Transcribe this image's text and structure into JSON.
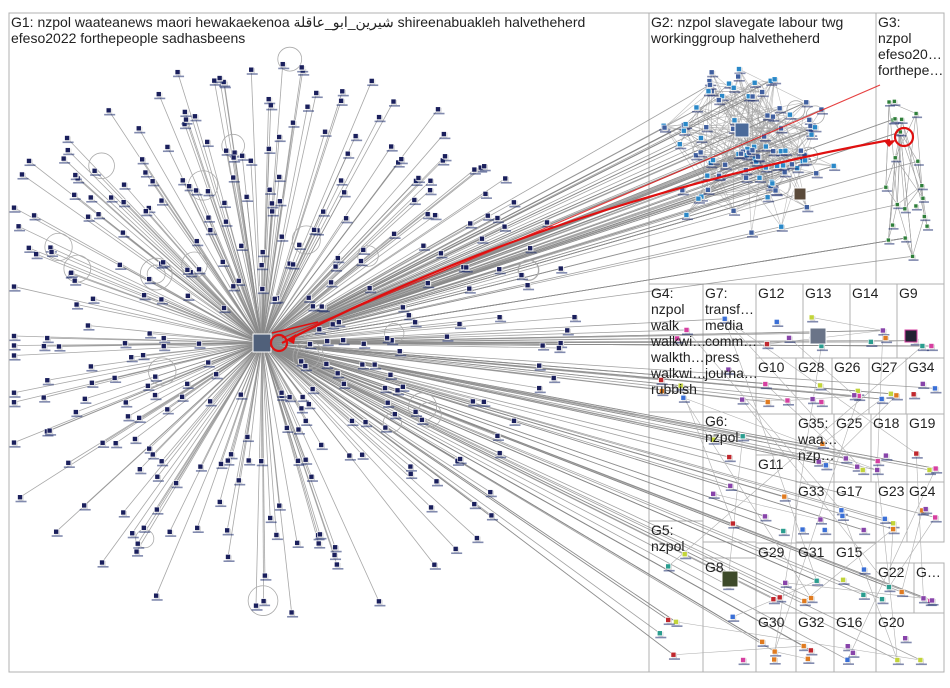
{
  "colors": {
    "edge": "#8a8a8a",
    "highlight": "#e01010",
    "box_border": "#b0b0b0",
    "label": "#222222",
    "node_g1": "#1a1f5c",
    "node_g2": "#2a88c8",
    "node_g3": "#2f7f3a",
    "node_g5": "#c0282e",
    "node_g8": "#c2d43a",
    "node_misc": "#8844aa"
  },
  "groups": [
    {
      "id": "G1",
      "lines": [
        "G1: nzpol waateanews maori hewakaekenoa شيرين_ابو_عاقلة shireenabuakleh halvetheherd",
        "efeso2022 forthepeople sadhasbeens"
      ]
    },
    {
      "id": "G2",
      "lines": [
        "G2: nzpol slavegate labour twg",
        "workinggroup halvetheherd"
      ]
    },
    {
      "id": "G3",
      "lines": [
        "G3:",
        "nzpol",
        "efeso20…",
        "forthepe…"
      ]
    },
    {
      "id": "G4",
      "lines": [
        "G4:",
        "nzpol",
        "walk",
        "walkwi…",
        "walkth…",
        "walkwi…",
        "rubbish"
      ]
    },
    {
      "id": "G7",
      "lines": [
        "G7:",
        "transf…",
        "media",
        "comm…",
        "press",
        "journa…"
      ]
    },
    {
      "id": "G12",
      "lines": [
        "G12"
      ]
    },
    {
      "id": "G13",
      "lines": [
        "G13"
      ]
    },
    {
      "id": "G14",
      "lines": [
        "G14"
      ]
    },
    {
      "id": "G9",
      "lines": [
        "G9"
      ]
    },
    {
      "id": "G10",
      "lines": [
        "G10"
      ]
    },
    {
      "id": "G28",
      "lines": [
        "G28"
      ]
    },
    {
      "id": "G26",
      "lines": [
        "G26"
      ]
    },
    {
      "id": "G27",
      "lines": [
        "G27"
      ]
    },
    {
      "id": "G34",
      "lines": [
        "G34"
      ]
    },
    {
      "id": "G6",
      "lines": [
        "G6:",
        "nzpol"
      ]
    },
    {
      "id": "G35",
      "lines": [
        "G35:",
        "waa…",
        "nzp…"
      ]
    },
    {
      "id": "G25",
      "lines": [
        "G25"
      ]
    },
    {
      "id": "G18",
      "lines": [
        "G18"
      ]
    },
    {
      "id": "G19",
      "lines": [
        "G19"
      ]
    },
    {
      "id": "G11",
      "lines": [
        "G11"
      ]
    },
    {
      "id": "G33",
      "lines": [
        "G33"
      ]
    },
    {
      "id": "G17",
      "lines": [
        "G17"
      ]
    },
    {
      "id": "G23",
      "lines": [
        "G23"
      ]
    },
    {
      "id": "G24",
      "lines": [
        "G24"
      ]
    },
    {
      "id": "G5",
      "lines": [
        "G5:",
        "nzpol"
      ]
    },
    {
      "id": "G29",
      "lines": [
        "G29"
      ]
    },
    {
      "id": "G31",
      "lines": [
        "G31"
      ]
    },
    {
      "id": "G15",
      "lines": [
        "G15"
      ]
    },
    {
      "id": "G22",
      "lines": [
        "G22"
      ]
    },
    {
      "id": "G21",
      "lines": [
        "G…"
      ]
    },
    {
      "id": "G8",
      "lines": [
        "G8"
      ]
    },
    {
      "id": "G30",
      "lines": [
        "G30"
      ]
    },
    {
      "id": "G32",
      "lines": [
        "G32"
      ]
    },
    {
      "id": "G16",
      "lines": [
        "G16"
      ]
    },
    {
      "id": "G20",
      "lines": [
        "G20"
      ]
    }
  ]
}
